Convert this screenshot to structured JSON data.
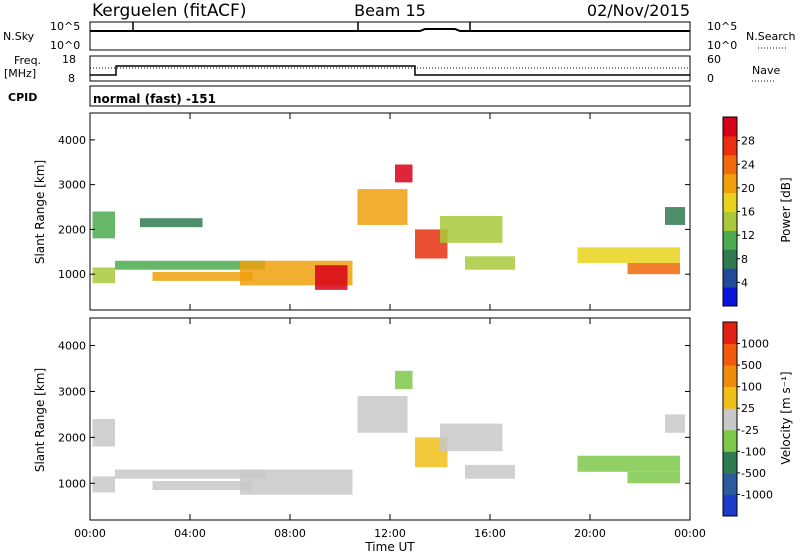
{
  "header": {
    "station": "Kerguelen (fitACF)",
    "beam": "Beam 15",
    "date": "02/Nov/2015"
  },
  "panels": {
    "nsky": {
      "label": "N.Sky",
      "ytick_top": "10^5",
      "ytick_bottom": "10^0",
      "right_label": "N.Search",
      "right_tick_top": "10^5",
      "right_tick_bottom": "10^0"
    },
    "freq": {
      "label_line1": "Freq.",
      "label_line2": "[MHz]",
      "ytick_top": "18",
      "ytick_bottom": "8",
      "right_label": "Nave",
      "right_tick_top": "60",
      "right_tick_bottom": "0"
    },
    "cpid": {
      "label": "CPID",
      "mode": "normal (fast) -151"
    }
  },
  "colorbars": {
    "power": {
      "label": "Power [dB]",
      "ticks": [
        "28",
        "24",
        "20",
        "16",
        "12",
        "8",
        "4"
      ],
      "colors": [
        "#0a14dc",
        "#234a9a",
        "#2f7a50",
        "#4caa4f",
        "#a9c93a",
        "#e8d21c",
        "#f0a00c",
        "#f06a0a",
        "#e83010",
        "#d80018"
      ]
    },
    "velocity": {
      "label": "Velocity [m s⁻¹]",
      "ticks": [
        "1000",
        "500",
        "100",
        "25",
        "-25",
        "-100",
        "-500",
        "-1000"
      ],
      "colors": [
        "#1a3cc8",
        "#2c5aa0",
        "#2f7a50",
        "#7cc84a",
        "#c8c8c8",
        "#f0c018",
        "#f08c0c",
        "#f05a0a",
        "#e02010"
      ]
    }
  },
  "chart_data": [
    {
      "type": "heatmap",
      "name": "power",
      "xlabel": "",
      "ylabel": "Slant Range [km]",
      "xlim": [
        0,
        24
      ],
      "ylim": [
        200,
        4600
      ],
      "xticks": [
        "00:00",
        "04:00",
        "08:00",
        "12:00",
        "16:00",
        "20:00",
        "00:00"
      ],
      "yticks": [
        "1000",
        "2000",
        "3000",
        "4000"
      ],
      "clim": [
        0,
        30
      ],
      "regions": [
        {
          "t0": 0.1,
          "t1": 1.0,
          "r0": 800,
          "r1": 1150,
          "value": 14
        },
        {
          "t0": 0.1,
          "t1": 1.0,
          "r0": 1800,
          "r1": 2400,
          "value": 9
        },
        {
          "t0": 1.0,
          "t1": 7.0,
          "r0": 1100,
          "r1": 1300,
          "value": 10
        },
        {
          "t0": 2.5,
          "t1": 6.5,
          "r0": 850,
          "r1": 1050,
          "value": 18
        },
        {
          "t0": 6.0,
          "t1": 10.5,
          "r0": 750,
          "r1": 1300,
          "value": 20
        },
        {
          "t0": 9.0,
          "t1": 10.3,
          "r0": 650,
          "r1": 1200,
          "value": 27
        },
        {
          "t0": 2.0,
          "t1": 4.5,
          "r0": 2050,
          "r1": 2250,
          "value": 8
        },
        {
          "t0": 10.7,
          "t1": 12.7,
          "r0": 2100,
          "r1": 2900,
          "value": 18
        },
        {
          "t0": 12.2,
          "t1": 12.9,
          "r0": 3050,
          "r1": 3450,
          "value": 27
        },
        {
          "t0": 13.0,
          "t1": 14.3,
          "r0": 1350,
          "r1": 2000,
          "value": 25
        },
        {
          "t0": 14.0,
          "t1": 16.5,
          "r0": 1700,
          "r1": 2300,
          "value": 14
        },
        {
          "t0": 15.0,
          "t1": 17.0,
          "r0": 1100,
          "r1": 1400,
          "value": 12
        },
        {
          "t0": 19.5,
          "t1": 23.6,
          "r0": 1250,
          "r1": 1600,
          "value": 16
        },
        {
          "t0": 21.5,
          "t1": 23.6,
          "r0": 1000,
          "r1": 1250,
          "value": 22
        },
        {
          "t0": 23.0,
          "t1": 23.8,
          "r0": 2100,
          "r1": 2500,
          "value": 8
        }
      ]
    },
    {
      "type": "heatmap",
      "name": "velocity",
      "xlabel": "Time UT",
      "ylabel": "Slant Range [km]",
      "xlim": [
        0,
        24
      ],
      "ylim": [
        200,
        4600
      ],
      "xticks": [
        "00:00",
        "04:00",
        "08:00",
        "12:00",
        "16:00",
        "20:00",
        "00:00"
      ],
      "yticks": [
        "1000",
        "2000",
        "3000",
        "4000"
      ],
      "clim": [
        -1200,
        1200
      ],
      "regions": [
        {
          "t0": 0.1,
          "t1": 1.0,
          "r0": 800,
          "r1": 1150,
          "value": 0
        },
        {
          "t0": 0.1,
          "t1": 1.0,
          "r0": 1800,
          "r1": 2400,
          "value": 0
        },
        {
          "t0": 1.0,
          "t1": 7.0,
          "r0": 1100,
          "r1": 1300,
          "value": 0
        },
        {
          "t0": 2.5,
          "t1": 6.5,
          "r0": 850,
          "r1": 1050,
          "value": 0
        },
        {
          "t0": 6.0,
          "t1": 10.5,
          "r0": 750,
          "r1": 1300,
          "value": 0
        },
        {
          "t0": 10.7,
          "t1": 12.7,
          "r0": 2100,
          "r1": 2900,
          "value": 0
        },
        {
          "t0": 12.2,
          "t1": 12.9,
          "r0": 3050,
          "r1": 3450,
          "value": -300
        },
        {
          "t0": 13.0,
          "t1": 14.3,
          "r0": 1350,
          "r1": 2000,
          "value": 200
        },
        {
          "t0": 14.0,
          "t1": 16.5,
          "r0": 1700,
          "r1": 2300,
          "value": 120
        },
        {
          "t0": 15.0,
          "t1": 17.0,
          "r0": 1100,
          "r1": 1400,
          "value": 80
        },
        {
          "t0": 19.5,
          "t1": 23.6,
          "r0": 1250,
          "r1": 1600,
          "value": -400
        },
        {
          "t0": 21.5,
          "t1": 23.6,
          "r0": 1000,
          "r1": 1250,
          "value": -250
        },
        {
          "t0": 23.0,
          "t1": 23.8,
          "r0": 2100,
          "r1": 2500,
          "value": 0
        }
      ]
    }
  ]
}
